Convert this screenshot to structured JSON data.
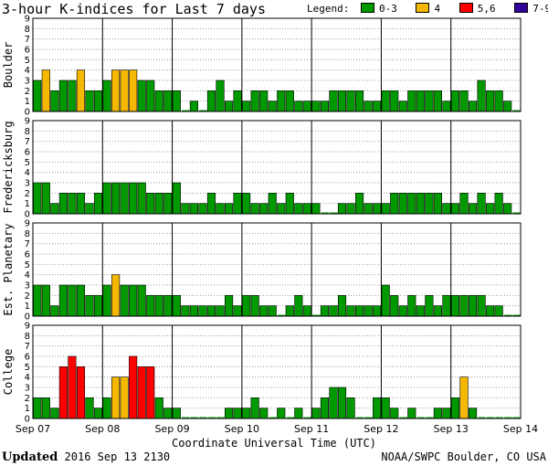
{
  "chart_data": {
    "type": "bar",
    "title": "3-hour K-indices for Last 7 days",
    "xlabel": "Coordinate Universal Time (UTC)",
    "ylim": [
      0,
      9
    ],
    "yticks": [
      "0",
      "1",
      "2",
      "3",
      "4",
      "5",
      "6",
      "7",
      "8",
      "9"
    ],
    "xticks": [
      "Sep 07",
      "Sep 08",
      "Sep 09",
      "Sep 10",
      "Sep 11",
      "Sep 12",
      "Sep 13",
      "Sep 14"
    ],
    "legend": {
      "title": "Legend:",
      "entries": [
        {
          "label": "0-3",
          "color": "#009900"
        },
        {
          "label": "4",
          "color": "#f5b800"
        },
        {
          "label": "5,6",
          "color": "#ff0000"
        },
        {
          "label": "7-9",
          "color": "#330099"
        }
      ]
    },
    "series": [
      {
        "name": "Boulder",
        "values": [
          3,
          4,
          2,
          3,
          3,
          4,
          2,
          2,
          3,
          4,
          4,
          4,
          3,
          3,
          2,
          2,
          2,
          0,
          1,
          0,
          2,
          3,
          1,
          2,
          1,
          2,
          2,
          1,
          2,
          2,
          1,
          1,
          1,
          1,
          2,
          2,
          2,
          2,
          1,
          1,
          2,
          2,
          1,
          2,
          2,
          2,
          2,
          1,
          2,
          2,
          1,
          3,
          2,
          2,
          1,
          0
        ]
      },
      {
        "name": "Fredericksburg",
        "values": [
          3,
          3,
          1,
          2,
          2,
          2,
          1,
          2,
          3,
          3,
          3,
          3,
          3,
          2,
          2,
          2,
          3,
          1,
          1,
          1,
          2,
          1,
          1,
          2,
          2,
          1,
          1,
          2,
          1,
          2,
          1,
          1,
          1,
          0,
          0,
          1,
          1,
          2,
          1,
          1,
          1,
          2,
          2,
          2,
          2,
          2,
          2,
          1,
          1,
          2,
          1,
          2,
          1,
          2,
          1,
          0
        ]
      },
      {
        "name": "Est. Planetary",
        "values": [
          3,
          3,
          1,
          3,
          3,
          3,
          2,
          2,
          3,
          4,
          3,
          3,
          3,
          2,
          2,
          2,
          2,
          1,
          1,
          1,
          1,
          1,
          2,
          1,
          2,
          2,
          1,
          1,
          0,
          1,
          2,
          1,
          0,
          1,
          1,
          2,
          1,
          1,
          1,
          1,
          3,
          2,
          1,
          2,
          1,
          2,
          1,
          2,
          2,
          2,
          2,
          2,
          1,
          1,
          0,
          0
        ]
      },
      {
        "name": "College",
        "values": [
          2,
          2,
          1,
          5,
          6,
          5,
          2,
          1,
          2,
          4,
          4,
          6,
          5,
          5,
          2,
          1,
          1,
          0,
          0,
          0,
          0,
          0,
          1,
          1,
          1,
          2,
          1,
          0,
          1,
          0,
          1,
          0,
          1,
          2,
          3,
          3,
          2,
          0,
          0,
          2,
          2,
          1,
          0,
          1,
          0,
          0,
          1,
          1,
          2,
          4,
          1,
          0,
          0,
          0,
          0,
          0
        ]
      }
    ]
  },
  "footer": {
    "updated_label": "Updated",
    "updated_value": "2016 Sep 13 2130",
    "source": "NOAA/SWPC Boulder, CO USA"
  }
}
